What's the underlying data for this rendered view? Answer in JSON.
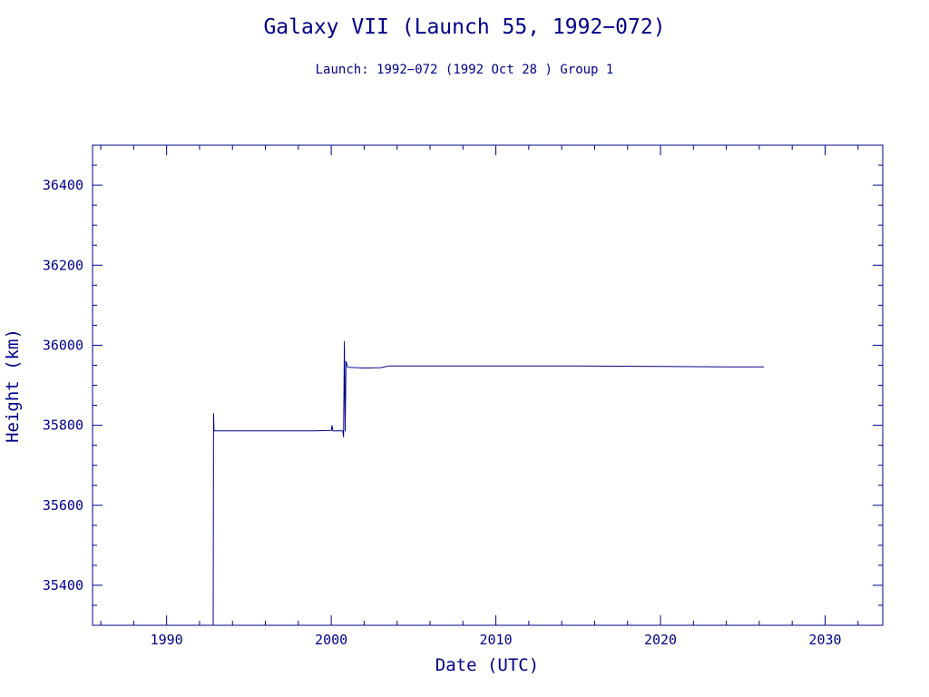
{
  "chart_data": {
    "type": "line",
    "title": "Galaxy VII (Launch 55, 1992−072)",
    "subtitle": "Launch: 1992−072  (1992 Oct 28 )  Group 1",
    "xlabel": "Date (UTC)",
    "ylabel": "Height (km)",
    "xlim": [
      1985.5,
      2033.5
    ],
    "ylim": [
      35300,
      36500
    ],
    "x_ticks": [
      1990,
      2000,
      2010,
      2020,
      2030
    ],
    "y_ticks": [
      35400,
      35600,
      35800,
      36000,
      36200,
      36400
    ],
    "grid": false,
    "colors": {
      "line": "#00008b",
      "text": "#00008b",
      "frame": "#00008b",
      "background": "#ffffff"
    },
    "series": [
      {
        "values": [
          [
            1992.83,
            35300
          ],
          [
            1992.85,
            35830
          ],
          [
            1992.88,
            35786
          ],
          [
            1995.0,
            35786
          ],
          [
            1997.0,
            35786
          ],
          [
            1999.0,
            35786
          ],
          [
            2000.0,
            35787
          ],
          [
            2000.05,
            35800
          ],
          [
            2000.1,
            35786
          ],
          [
            2000.5,
            35786
          ],
          [
            2000.7,
            35786
          ],
          [
            2000.75,
            35770
          ],
          [
            2000.8,
            36010
          ],
          [
            2000.85,
            35785
          ],
          [
            2000.9,
            35960
          ],
          [
            2001.0,
            35945
          ],
          [
            2002.0,
            35943
          ],
          [
            2003.0,
            35944
          ],
          [
            2003.5,
            35948
          ],
          [
            2005.0,
            35948
          ],
          [
            2010.0,
            35948
          ],
          [
            2015.0,
            35948
          ],
          [
            2020.0,
            35947
          ],
          [
            2024.0,
            35946
          ],
          [
            2026.3,
            35946
          ]
        ]
      }
    ]
  }
}
